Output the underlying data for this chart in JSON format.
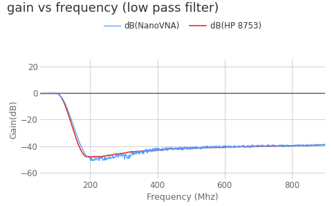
{
  "title": "gain vs frequency (low pass filter)",
  "xlabel": "Frequency (Mhz)",
  "ylabel": "Gain(dB)",
  "xlim": [
    50,
    900
  ],
  "ylim": [
    -65,
    25
  ],
  "yticks": [
    -60,
    -40,
    -20,
    0,
    20
  ],
  "xticks": [
    200,
    400,
    600,
    800
  ],
  "background_color": "#ffffff",
  "grid_color": "#d0d0d0",
  "legend": [
    "dB(NanoVNA)",
    "dB(HP 8753)"
  ],
  "line_colors": [
    "#5599ff",
    "#dd2211"
  ],
  "title_fontsize": 13,
  "label_fontsize": 9,
  "legend_fontsize": 8.5,
  "zero_line_color": "#555555",
  "tick_color": "#666666"
}
